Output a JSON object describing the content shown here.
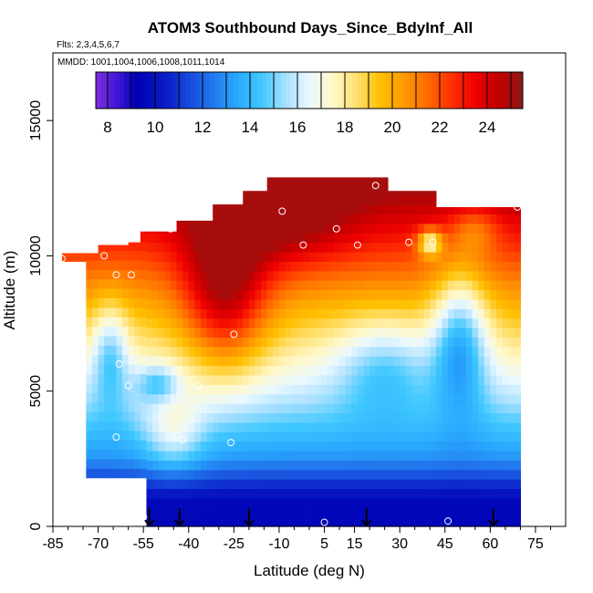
{
  "chart_data": {
    "type": "heatmap",
    "title": "ATOM3 Southbound Days_Since_BdyInf_All",
    "flights_label": "Flts: 2,3,4,5,6,7",
    "dates_label": "MMDD: 1001,1004,1006,1008,1011,1014",
    "xlabel": "Latitude (deg N)",
    "ylabel": "Altitude (m)",
    "xlim": [
      -85,
      85
    ],
    "ylim": [
      0,
      17500
    ],
    "x_ticks": [
      -85,
      -70,
      -55,
      -40,
      -25,
      -10,
      5,
      15,
      30,
      45,
      60,
      75
    ],
    "x_tick_labels": [
      "-85",
      "-70",
      "-55",
      "-40",
      "-25",
      "-10",
      "5",
      "15",
      "30",
      "45",
      "60",
      "75"
    ],
    "y_ticks": [
      0,
      5000,
      10000,
      15000
    ],
    "y_tick_labels": [
      "0",
      "5000",
      "10000",
      "15000"
    ],
    "colorbar": {
      "range": [
        7.5,
        25.5
      ],
      "ticks": [
        8,
        10,
        12,
        14,
        16,
        18,
        20,
        22,
        24
      ],
      "tick_labels": [
        "8",
        "10",
        "12",
        "14",
        "16",
        "18",
        "20",
        "22",
        "24"
      ],
      "color_stops": [
        [
          7.5,
          "#7d2fe0"
        ],
        [
          8.5,
          "#3a14d6"
        ],
        [
          9.2,
          "#0000b4"
        ],
        [
          10.5,
          "#0a1ec8"
        ],
        [
          12,
          "#1e64e6"
        ],
        [
          13.5,
          "#2aaaff"
        ],
        [
          14.5,
          "#40c8ff"
        ],
        [
          15.5,
          "#a8e0ff"
        ],
        [
          16.5,
          "#eaf8ff"
        ],
        [
          17.5,
          "#fff8c8"
        ],
        [
          18.5,
          "#ffe070"
        ],
        [
          19.5,
          "#ffc000"
        ],
        [
          20.5,
          "#ff9a00"
        ],
        [
          21.5,
          "#ff6a00"
        ],
        [
          22.5,
          "#ff3000"
        ],
        [
          23.5,
          "#ee0000"
        ],
        [
          24.5,
          "#c00000"
        ],
        [
          25.5,
          "#8c1a1a"
        ]
      ]
    },
    "arrow_latitudes": [
      -53,
      -43,
      -20,
      19,
      61
    ],
    "grid": {
      "lat_start": -82,
      "lat_step": 2,
      "alt_start": 0,
      "alt_step": 350,
      "column_ranges": [
        [
          -82,
          9800,
          10100
        ],
        [
          -80,
          9800,
          10100
        ],
        [
          -78,
          9800,
          10100
        ],
        [
          -76,
          9800,
          10100
        ],
        [
          -74,
          1800,
          10100
        ],
        [
          -72,
          1800,
          10100
        ],
        [
          -70,
          1800,
          10400
        ],
        [
          -68,
          1800,
          10400
        ],
        [
          -66,
          1800,
          10400
        ],
        [
          -64,
          1800,
          10400
        ],
        [
          -62,
          1800,
          10400
        ],
        [
          -60,
          1800,
          10500
        ],
        [
          -58,
          1800,
          10500
        ],
        [
          -56,
          1800,
          10900
        ],
        [
          -54,
          0,
          10900
        ],
        [
          -52,
          0,
          10900
        ],
        [
          -50,
          0,
          10900
        ],
        [
          -48,
          0,
          10900
        ],
        [
          -46,
          0,
          10900
        ],
        [
          -44,
          0,
          11300
        ],
        [
          -42,
          0,
          11300
        ],
        [
          -40,
          0,
          11300
        ],
        [
          -38,
          0,
          11300
        ],
        [
          -36,
          0,
          11300
        ],
        [
          -34,
          0,
          11300
        ],
        [
          -32,
          0,
          11900
        ],
        [
          -30,
          0,
          11900
        ],
        [
          -28,
          0,
          11900
        ],
        [
          -26,
          0,
          11900
        ],
        [
          -24,
          0,
          11900
        ],
        [
          -22,
          0,
          12400
        ],
        [
          -20,
          0,
          12400
        ],
        [
          -18,
          0,
          12400
        ],
        [
          -16,
          0,
          12400
        ],
        [
          -14,
          0,
          12900
        ],
        [
          -12,
          0,
          12900
        ],
        [
          -10,
          0,
          12900
        ],
        [
          -8,
          0,
          12900
        ],
        [
          -6,
          0,
          12900
        ],
        [
          -4,
          0,
          12900
        ],
        [
          -2,
          0,
          12900
        ],
        [
          0,
          0,
          12900
        ],
        [
          2,
          0,
          12900
        ],
        [
          4,
          0,
          12900
        ],
        [
          6,
          0,
          12900
        ],
        [
          8,
          0,
          12900
        ],
        [
          10,
          0,
          12900
        ],
        [
          12,
          0,
          12900
        ],
        [
          14,
          0,
          12900
        ],
        [
          16,
          0,
          12900
        ],
        [
          18,
          0,
          12900
        ],
        [
          20,
          0,
          12900
        ],
        [
          22,
          0,
          12900
        ],
        [
          24,
          0,
          12900
        ],
        [
          26,
          0,
          12400
        ],
        [
          28,
          0,
          12400
        ],
        [
          30,
          0,
          12400
        ],
        [
          32,
          0,
          12400
        ],
        [
          34,
          0,
          12400
        ],
        [
          36,
          0,
          12400
        ],
        [
          38,
          0,
          12400
        ],
        [
          40,
          0,
          12400
        ],
        [
          42,
          0,
          11800
        ],
        [
          44,
          0,
          11800
        ],
        [
          46,
          0,
          11800
        ],
        [
          48,
          0,
          11800
        ],
        [
          50,
          0,
          11800
        ],
        [
          52,
          0,
          11800
        ],
        [
          54,
          0,
          11800
        ],
        [
          56,
          0,
          11800
        ],
        [
          58,
          0,
          11800
        ],
        [
          60,
          0,
          11800
        ],
        [
          62,
          0,
          11800
        ],
        [
          64,
          0,
          11800
        ],
        [
          66,
          0,
          11800
        ],
        [
          68,
          0,
          11800
        ]
      ],
      "note": "column_ranges entries are [latitude, min_altitude, max_altitude] in data units; colours are estimated days values"
    },
    "sample_points": [
      {
        "lat": -82,
        "alt": 9900
      },
      {
        "lat": -68,
        "alt": 10000
      },
      {
        "lat": -64,
        "alt": 9300
      },
      {
        "lat": -59,
        "alt": 9300
      },
      {
        "lat": -46,
        "alt": 11000
      },
      {
        "lat": -19,
        "alt": 12600
      },
      {
        "lat": -9,
        "alt": 11650
      },
      {
        "lat": -2,
        "alt": 10400
      },
      {
        "lat": 9,
        "alt": 11000
      },
      {
        "lat": 16,
        "alt": 10400
      },
      {
        "lat": 22,
        "alt": 12600
      },
      {
        "lat": 33,
        "alt": 10500
      },
      {
        "lat": 41,
        "alt": 10500
      },
      {
        "lat": 69,
        "alt": 11800
      },
      {
        "lat": -25,
        "alt": 7100
      },
      {
        "lat": -63,
        "alt": 6000
      },
      {
        "lat": -60,
        "alt": 5200
      },
      {
        "lat": -37,
        "alt": 5200
      },
      {
        "lat": -64,
        "alt": 3300
      },
      {
        "lat": -42,
        "alt": 3200
      },
      {
        "lat": -26,
        "alt": 3100
      },
      {
        "lat": -55,
        "alt": 350
      },
      {
        "lat": 5,
        "alt": 150
      },
      {
        "lat": 46,
        "alt": 200
      }
    ]
  }
}
